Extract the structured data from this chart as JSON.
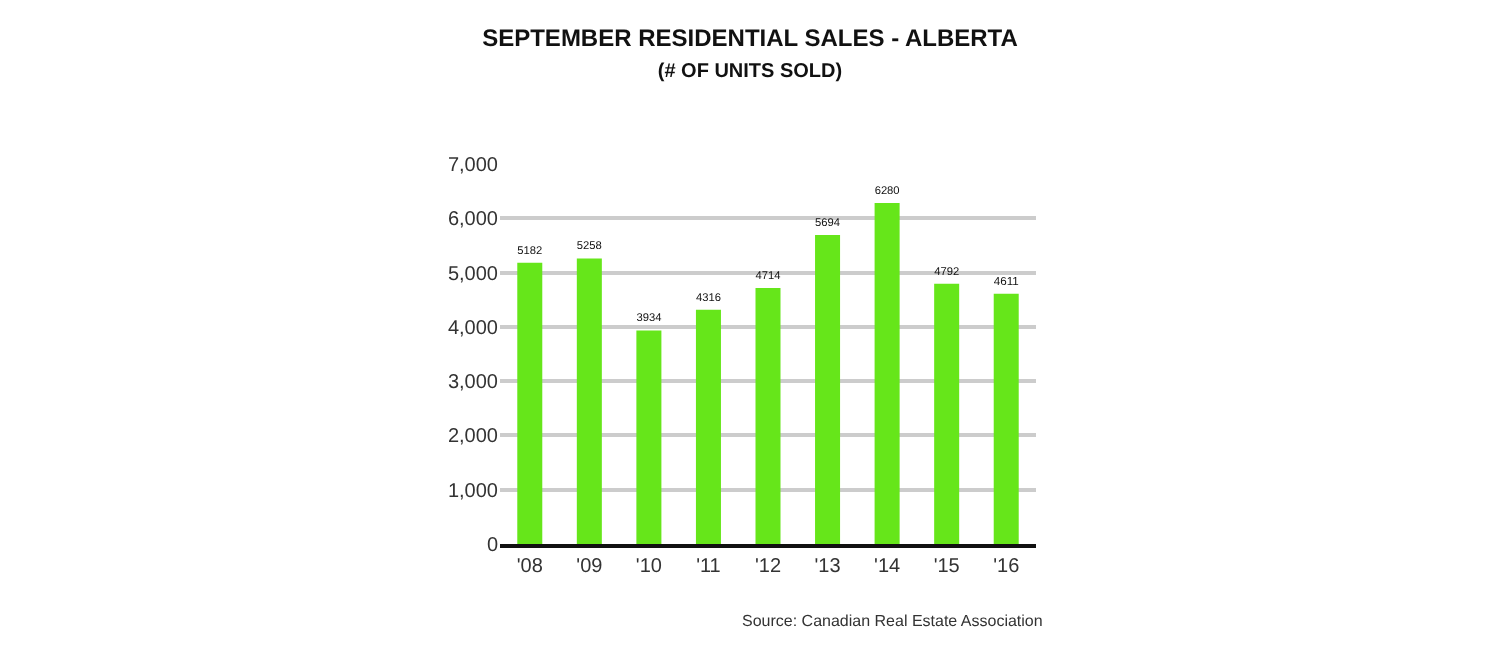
{
  "chart_data": {
    "type": "bar",
    "title": "SEPTEMBER RESIDENTIAL SALES - ALBERTA",
    "subtitle": "(# OF UNITS SOLD)",
    "categories": [
      "'08",
      "'09",
      "'10",
      "'11",
      "'12",
      "'13",
      "'14",
      "'15",
      "'16"
    ],
    "values": [
      5182,
      5258,
      3934,
      4316,
      4714,
      5694,
      6280,
      4792,
      4611
    ],
    "color": "#66e61a",
    "ylim": [
      0,
      7000
    ],
    "yticks": [
      0,
      {
        "value": 1000,
        "label": "1,000"
      },
      {
        "value": 2000,
        "label": "2,000"
      },
      {
        "value": 3000,
        "label": "3,000"
      },
      {
        "value": 4000,
        "label": "4,000"
      },
      {
        "value": 5000,
        "label": "5,000"
      },
      {
        "value": 6000,
        "label": "6,000"
      },
      {
        "value": 7000,
        "label": "7,000"
      }
    ],
    "grid": "y",
    "data_labels": true,
    "annotations": [
      "Source: Canadian Real Estate Association"
    ]
  }
}
